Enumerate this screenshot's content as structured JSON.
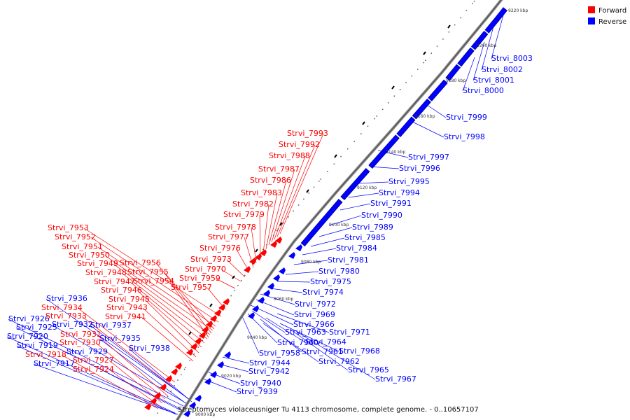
{
  "caption": "Streptomyces violaceusniger Tu 4113 chromosome, complete genome. - 0..10657107",
  "legend": [
    {
      "label": "Forward",
      "color": "#ff0000"
    },
    {
      "label": "Reverse",
      "color": "#0000ff"
    }
  ],
  "colors": {
    "forward": "#ff0000",
    "reverse": "#0000ff",
    "backbone": "#8a8a8a"
  },
  "ticks": [
    "9220 kbp",
    "9200 kbp",
    "9180 kbp",
    "9160 kbp",
    "9140 kbp",
    "9120 kbp",
    "9100 kbp",
    "9080 kbp",
    "9060 kbp",
    "9040 kbp",
    "9020 kbp",
    "9000 kbp"
  ],
  "reverse_genes": [
    "Strvi_8003",
    "Strvi_8002",
    "Strvi_8001",
    "Strvi_8000",
    "Strvi_7999",
    "Strvi_7998",
    "Strvi_7997",
    "Strvi_7996",
    "Strvi_7995",
    "Strvi_7994",
    "Strvi_7991",
    "Strvi_7990",
    "Strvi_7989",
    "Strvi_7985",
    "Strvi_7984",
    "Strvi_7981",
    "Strvi_7980",
    "Strvi_7975",
    "Strvi_7974",
    "Strvi_7972",
    "Strvi_7969",
    "Strvi_7966",
    "Strvi_7971",
    "Strvi_7963",
    "Strvi_7964",
    "Strvi_7960",
    "Strvi_7961",
    "Strvi_7968",
    "Strvi_7958",
    "Strvi_7962",
    "Strvi_7944",
    "Strvi_7965",
    "Strvi_7942",
    "Strvi_7967",
    "Strvi_7940",
    "Strvi_7939",
    "Strvi_7936",
    "Strvi_7926",
    "Strvi_7925",
    "Strvi_7932",
    "Strvi_7937",
    "Strvi_7920",
    "Strvi_7935",
    "Strvi_7919",
    "Strvi_7938",
    "Strvi_7929",
    "Strvi_7917"
  ],
  "forward_genes": [
    "Strvi_7993",
    "Strvi_7992",
    "Strvi_7988",
    "Strvi_7987",
    "Strvi_7986",
    "Strvi_7983",
    "Strvi_7982",
    "Strvi_7979",
    "Strvi_7978",
    "Strvi_7977",
    "Strvi_7976",
    "Strvi_7973",
    "Strvi_7970",
    "Strvi_7959",
    "Strvi_7957",
    "Strvi_7953",
    "Strvi_7952",
    "Strvi_7951",
    "Strvi_7950",
    "Strvi_7949",
    "Strvi_7956",
    "Strvi_7948",
    "Strvi_7955",
    "Strvi_7947",
    "Strvi_7954",
    "Strvi_7946",
    "Strvi_7945",
    "Strvi_7943",
    "Strvi_7941",
    "Strvi_7934",
    "Strvi_7933",
    "Strvi_7931",
    "Strvi_7930",
    "Strvi_7918",
    "Strvi_7927",
    "Strvi_7924"
  ]
}
